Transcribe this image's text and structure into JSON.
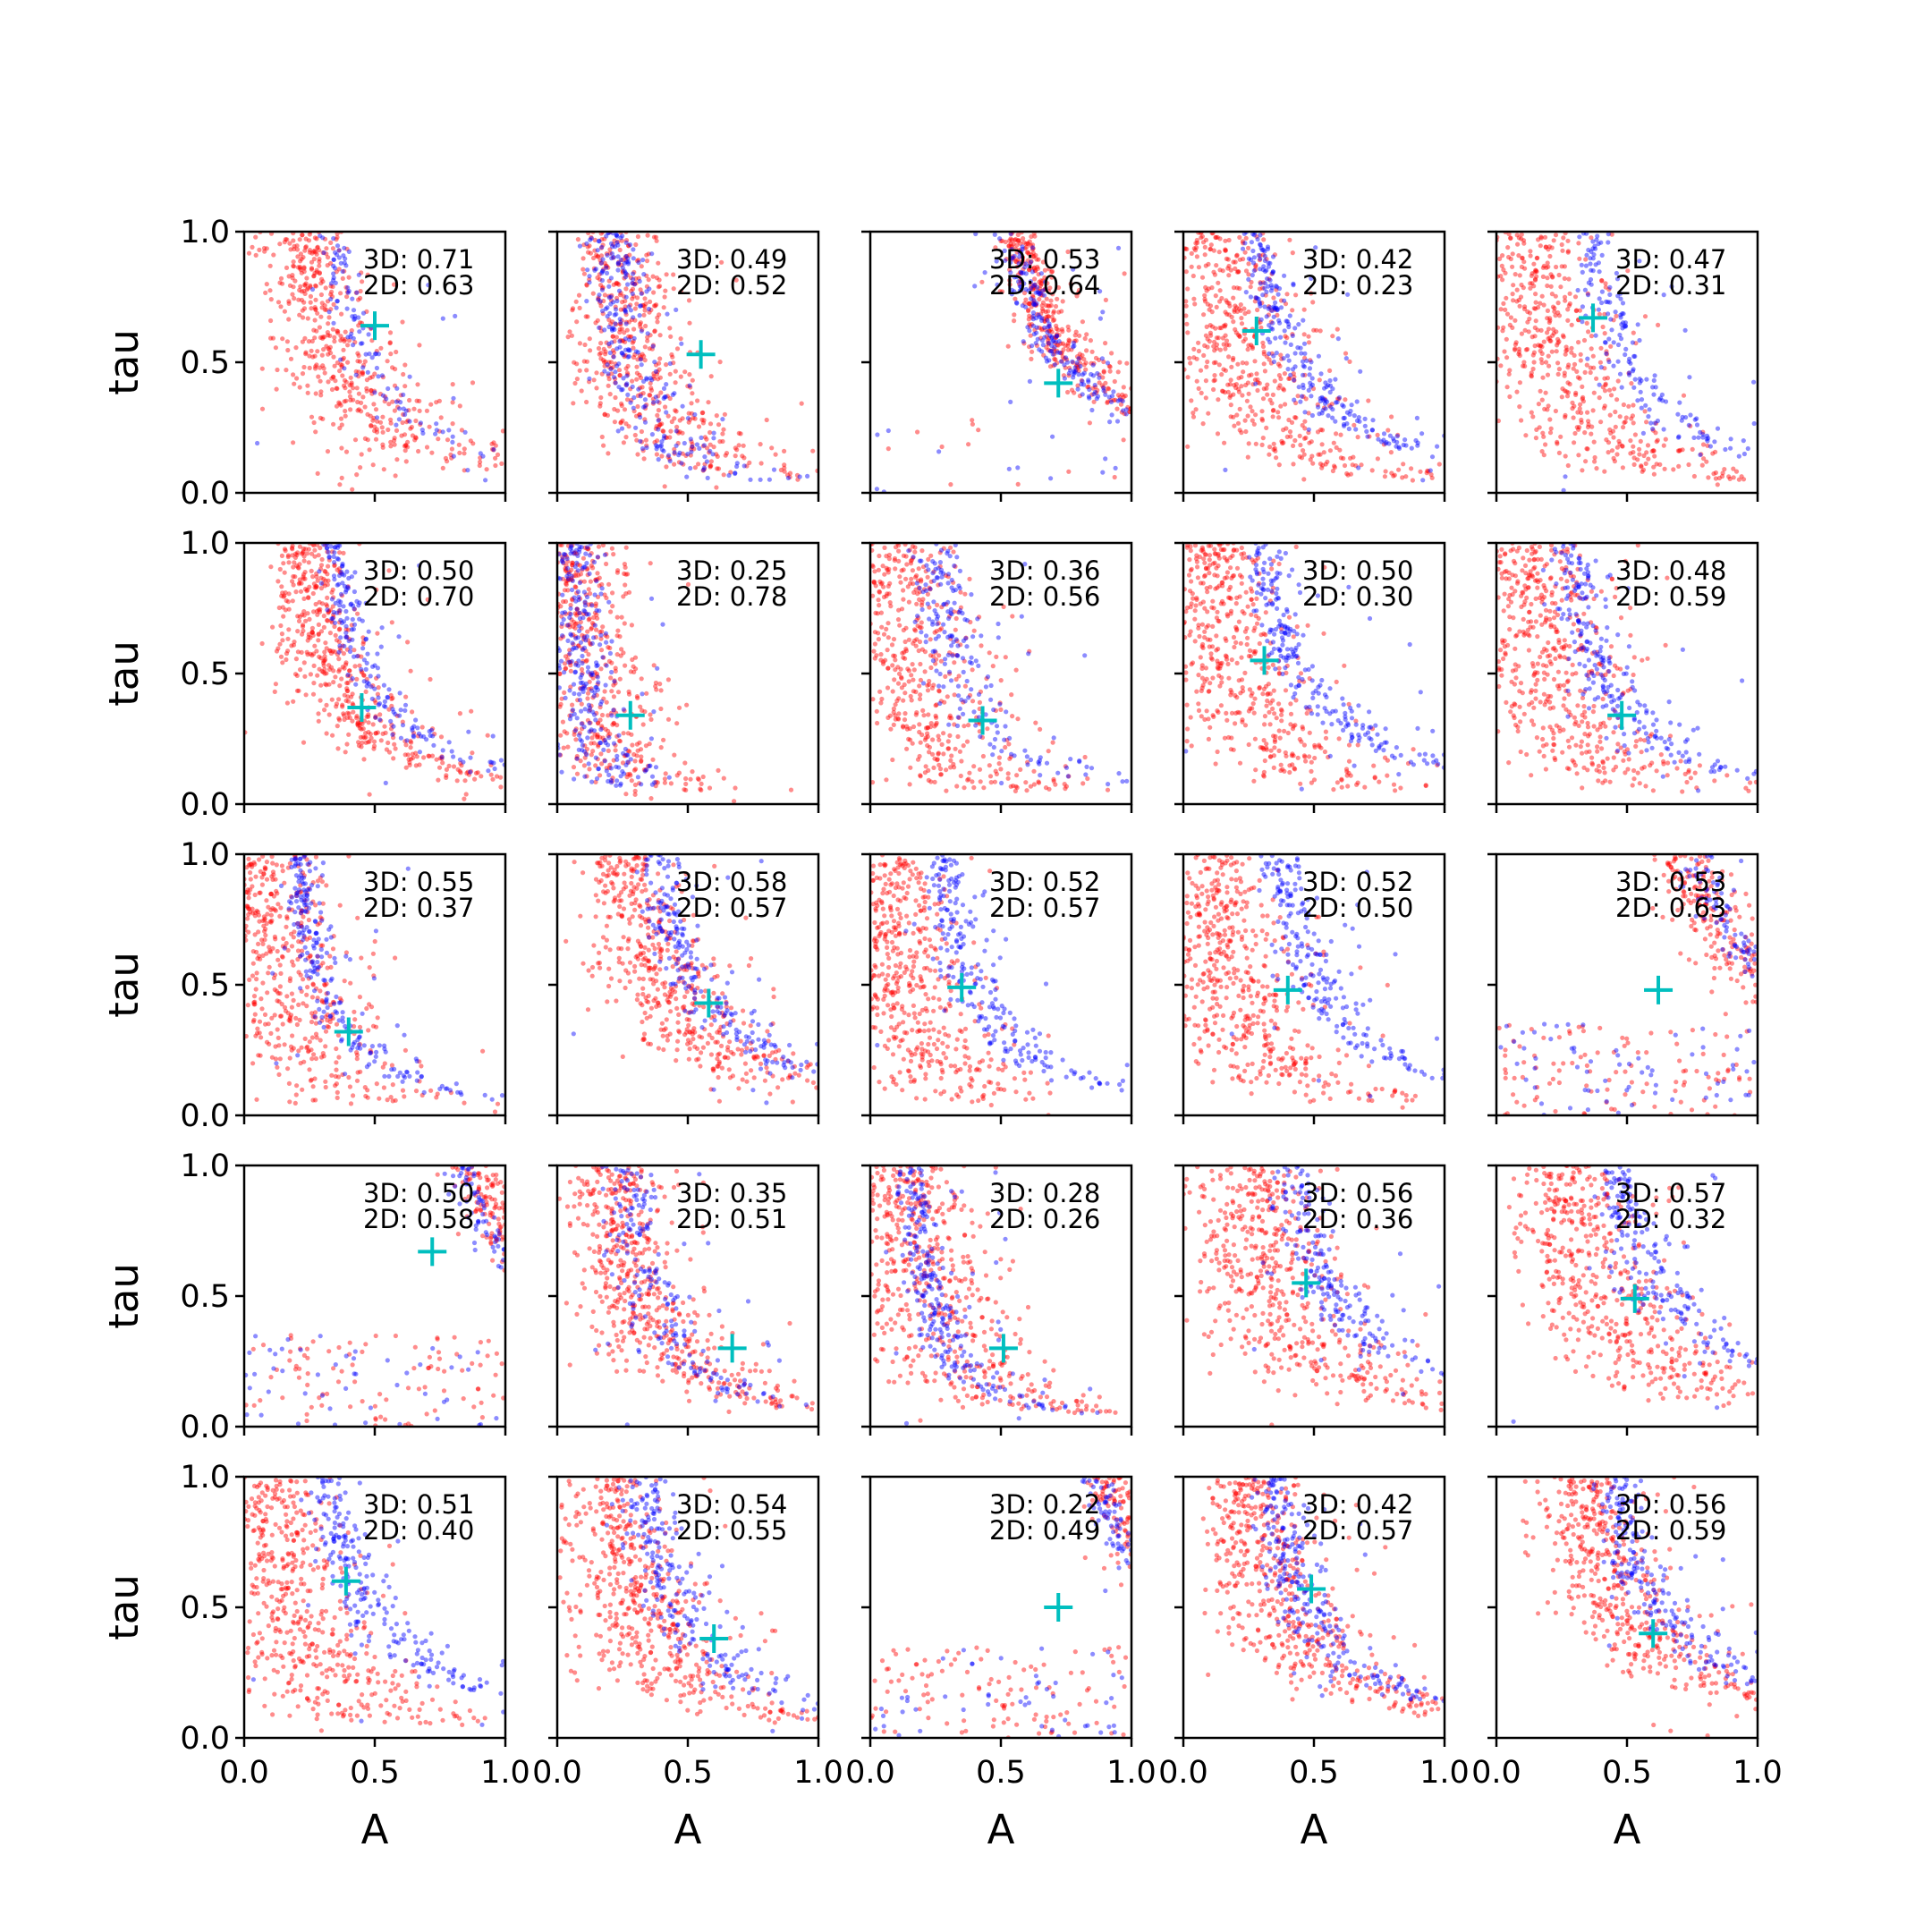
{
  "chart_data": {
    "type": "scatter",
    "grid": false,
    "layout": {
      "rows": 5,
      "cols": 5
    },
    "xlabel": "A",
    "ylabel": "tau",
    "xlim": [
      0,
      1
    ],
    "ylim": [
      0,
      1
    ],
    "xticks": [
      "0.0",
      "0.5",
      "1.0"
    ],
    "yticks": [
      "0.0",
      "0.5",
      "1.0"
    ],
    "marker_color": "#00bfbf",
    "series": [
      {
        "color": "#ff0000",
        "opacity": 0.45
      },
      {
        "color": "#0000ff",
        "opacity": 0.45
      }
    ],
    "panels": [
      {
        "label_3d": "3D: 0.71",
        "label_2d": "2D: 0.63",
        "marker": [
          0.5,
          0.64
        ],
        "red": {
          "a": [
            0.1,
            0.14,
            0.1,
            0.4,
            0.7
          ],
          "b": 0.02,
          "spread": 0.08,
          "dots": 550
        },
        "blue": {
          "a": [
            0.2,
            0.15,
            0.18,
            0.45,
            0.9
          ],
          "b": 0.04,
          "spread": 0.03,
          "dots": 130
        }
      },
      {
        "label_3d": "3D: 0.49",
        "label_2d": "2D: 0.52",
        "marker": [
          0.55,
          0.53
        ],
        "red": {
          "a": [
            0.12,
            0.09,
            0.12,
            0.32,
            0.95
          ],
          "b": 0.01,
          "spread": 0.08,
          "dots": 550
        },
        "blue": {
          "a": [
            0.15,
            0.07,
            0.14,
            0.25,
            0.98
          ],
          "b": 0.01,
          "spread": 0.05,
          "dots": 270
        }
      },
      {
        "label_3d": "3D: 0.53",
        "label_2d": "2D: 0.64",
        "marker": [
          0.72,
          0.42
        ],
        "red": {
          "a": [
            0.3,
            0.27,
            0.4,
            0.55,
            0.97
          ],
          "b": 0.06,
          "spread": 0.04,
          "dots": 520
        },
        "blue": {
          "a": [
            0.3,
            0.25,
            0.4,
            0.55,
            0.95
          ],
          "b": 0.05,
          "spread": 0.03,
          "dots": 260
        }
      },
      {
        "label_3d": "3D: 0.42",
        "label_2d": "2D: 0.23",
        "marker": [
          0.28,
          0.62
        ],
        "red": {
          "a": [
            0.05,
            0.09,
            0.02,
            0.55,
            0.95
          ],
          "b": 0.0,
          "spread": 0.1,
          "dots": 550
        },
        "blue": {
          "a": [
            0.12,
            0.17,
            0.2,
            0.45,
            0.98
          ],
          "b": 0.02,
          "spread": 0.03,
          "dots": 280
        }
      },
      {
        "label_3d": "3D: 0.47",
        "label_2d": "2D: 0.31",
        "marker": [
          0.37,
          0.67
        ],
        "red": {
          "a": [
            0.05,
            0.09,
            0.02,
            0.5,
            0.95
          ],
          "b": 0.0,
          "spread": 0.1,
          "dots": 550
        },
        "blue": {
          "a": [
            0.2,
            0.16,
            0.3,
            0.55,
            0.98
          ],
          "b": 0.02,
          "spread": 0.04,
          "dots": 200
        }
      },
      {
        "label_3d": "3D: 0.50",
        "label_2d": "2D: 0.70",
        "marker": [
          0.45,
          0.37
        ],
        "red": {
          "a": [
            0.1,
            0.13,
            0.18,
            0.45,
            0.8
          ],
          "b": 0.01,
          "spread": 0.06,
          "dots": 550
        },
        "blue": {
          "a": [
            0.2,
            0.15,
            0.25,
            0.55,
            0.98
          ],
          "b": 0.02,
          "spread": 0.03,
          "dots": 200
        }
      },
      {
        "label_3d": "3D: 0.25",
        "label_2d": "2D: 0.78",
        "marker": [
          0.28,
          0.34
        ],
        "red": {
          "a": [
            0.03,
            0.04,
            0.1,
            0.25,
            0.9
          ],
          "b": 0.0,
          "spread": 0.08,
          "dots": 550
        },
        "blue": {
          "a": [
            0.04,
            0.03,
            0.1,
            0.2,
            0.92
          ],
          "b": 0.0,
          "spread": 0.05,
          "dots": 300
        }
      },
      {
        "label_3d": "3D: 0.36",
        "label_2d": "2D: 0.56",
        "marker": [
          0.43,
          0.32
        ],
        "red": {
          "a": [
            0.05,
            0.06,
            0.2,
            0.45,
            0.9
          ],
          "b": 0.0,
          "spread": 0.1,
          "dots": 550
        },
        "blue": {
          "a": [
            0.15,
            0.11,
            0.22,
            0.4,
            0.9
          ],
          "b": 0.0,
          "spread": 0.04,
          "dots": 200
        }
      },
      {
        "label_3d": "3D: 0.50",
        "label_2d": "2D: 0.30",
        "marker": [
          0.31,
          0.55
        ],
        "red": {
          "a": [
            0.03,
            0.08,
            0.02,
            0.5,
            0.95
          ],
          "b": 0.0,
          "spread": 0.1,
          "dots": 550
        },
        "blue": {
          "a": [
            0.14,
            0.17,
            0.2,
            0.45,
            0.98
          ],
          "b": 0.02,
          "spread": 0.03,
          "dots": 250
        }
      },
      {
        "label_3d": "3D: 0.48",
        "label_2d": "2D: 0.59",
        "marker": [
          0.48,
          0.34
        ],
        "red": {
          "a": [
            0.05,
            0.08,
            0.05,
            0.5,
            0.98
          ],
          "b": 0.0,
          "spread": 0.1,
          "dots": 550
        },
        "blue": {
          "a": [
            0.16,
            0.13,
            0.3,
            0.55,
            0.95
          ],
          "b": 0.02,
          "spread": 0.04,
          "dots": 250
        }
      },
      {
        "label_3d": "3D: 0.55",
        "label_2d": "2D: 0.37",
        "marker": [
          0.4,
          0.32
        ],
        "red": {
          "a": [
            0.03,
            0.06,
            0.02,
            0.45,
            0.95
          ],
          "b": 0.0,
          "spread": 0.1,
          "dots": 550
        },
        "blue": {
          "a": [
            0.12,
            0.1,
            0.3,
            0.55,
            0.98
          ],
          "b": 0.01,
          "spread": 0.03,
          "dots": 230
        }
      },
      {
        "label_3d": "3D: 0.58",
        "label_2d": "2D: 0.57",
        "marker": [
          0.58,
          0.43
        ],
        "red": {
          "a": [
            0.12,
            0.15,
            0.1,
            0.45,
            0.95
          ],
          "b": 0.0,
          "spread": 0.08,
          "dots": 550
        },
        "blue": {
          "a": [
            0.2,
            0.18,
            0.4,
            0.6,
            0.97
          ],
          "b": 0.02,
          "spread": 0.04,
          "dots": 250
        }
      },
      {
        "label_3d": "3D: 0.52",
        "label_2d": "2D: 0.57",
        "marker": [
          0.35,
          0.49
        ],
        "red": {
          "a": [
            0.03,
            0.05,
            0.02,
            0.45,
            0.95
          ],
          "b": 0.0,
          "spread": 0.09,
          "dots": 550
        },
        "blue": {
          "a": [
            0.15,
            0.13,
            0.3,
            0.55,
            0.98
          ],
          "b": 0.02,
          "spread": 0.04,
          "dots": 250
        }
      },
      {
        "label_3d": "3D: 0.52",
        "label_2d": "2D: 0.50",
        "marker": [
          0.4,
          0.48
        ],
        "red": {
          "a": [
            0.05,
            0.07,
            0.05,
            0.5,
            0.95
          ],
          "b": 0.0,
          "spread": 0.09,
          "dots": 550
        },
        "blue": {
          "a": [
            0.2,
            0.17,
            0.35,
            0.6,
            0.97
          ],
          "b": 0.02,
          "spread": 0.04,
          "dots": 260
        }
      },
      {
        "label_3d": "3D: 0.53",
        "label_2d": "2D: 0.63",
        "marker": [
          0.62,
          0.48
        ],
        "red": {
          "a": [
            0.4,
            0.34,
            0.3,
            0.6,
            0.98
          ],
          "b": 0.2,
          "spread": 0.06,
          "dots": 520
        },
        "blue": {
          "a": [
            0.4,
            0.37,
            0.4,
            0.6,
            0.98
          ],
          "b": 0.25,
          "spread": 0.04,
          "dots": 260
        }
      },
      {
        "label_3d": "3D: 0.50",
        "label_2d": "2D: 0.58",
        "marker": [
          0.72,
          0.67
        ],
        "red": {
          "a": [
            0.48,
            0.42,
            0.28,
            0.6,
            0.98
          ],
          "b": 0.2,
          "spread": 0.05,
          "dots": 500
        },
        "blue": {
          "a": [
            0.45,
            0.4,
            0.5,
            0.7,
            0.97
          ],
          "b": 0.25,
          "spread": 0.03,
          "dots": 220
        }
      },
      {
        "label_3d": "3D: 0.35",
        "label_2d": "2D: 0.51",
        "marker": [
          0.67,
          0.3
        ],
        "red": {
          "a": [
            0.1,
            0.11,
            0.1,
            0.4,
            0.95
          ],
          "b": 0.0,
          "spread": 0.08,
          "dots": 550
        },
        "blue": {
          "a": [
            0.18,
            0.1,
            0.4,
            0.55,
            0.85
          ],
          "b": 0.01,
          "spread": 0.04,
          "dots": 200
        }
      },
      {
        "label_3d": "3D: 0.28",
        "label_2d": "2D: 0.26",
        "marker": [
          0.51,
          0.3
        ],
        "red": {
          "a": [
            0.05,
            0.08,
            0.1,
            0.4,
            0.95
          ],
          "b": 0.0,
          "spread": 0.1,
          "dots": 550
        },
        "blue": {
          "a": [
            0.1,
            0.07,
            0.4,
            0.5,
            0.95
          ],
          "b": 0.04,
          "spread": 0.03,
          "dots": 260
        }
      },
      {
        "label_3d": "3D: 0.56",
        "label_2d": "2D: 0.36",
        "marker": [
          0.47,
          0.55
        ],
        "red": {
          "a": [
            0.1,
            0.13,
            0.08,
            0.5,
            0.98
          ],
          "b": 0.0,
          "spread": 0.1,
          "dots": 550
        },
        "blue": {
          "a": [
            0.22,
            0.2,
            0.35,
            0.55,
            0.98
          ],
          "b": 0.02,
          "spread": 0.04,
          "dots": 250
        }
      },
      {
        "label_3d": "3D: 0.57",
        "label_2d": "2D: 0.32",
        "marker": [
          0.53,
          0.49
        ],
        "red": {
          "a": [
            0.15,
            0.13,
            0.1,
            0.5,
            0.98
          ],
          "b": 0.0,
          "spread": 0.1,
          "dots": 550
        },
        "blue": {
          "a": [
            0.25,
            0.22,
            0.4,
            0.6,
            0.98
          ],
          "b": 0.02,
          "spread": 0.04,
          "dots": 240
        }
      },
      {
        "label_3d": "3D: 0.51",
        "label_2d": "2D: 0.40",
        "marker": [
          0.39,
          0.6
        ],
        "red": {
          "a": [
            0.05,
            0.07,
            0.02,
            0.5,
            0.95
          ],
          "b": 0.0,
          "spread": 0.1,
          "dots": 550
        },
        "blue": {
          "a": [
            0.15,
            0.18,
            0.3,
            0.55,
            0.98
          ],
          "b": 0.02,
          "spread": 0.04,
          "dots": 250
        }
      },
      {
        "label_3d": "3D: 0.54",
        "label_2d": "2D: 0.55",
        "marker": [
          0.6,
          0.38
        ],
        "red": {
          "a": [
            0.1,
            0.11,
            0.1,
            0.45,
            0.95
          ],
          "b": 0.0,
          "spread": 0.09,
          "dots": 550
        },
        "blue": {
          "a": [
            0.2,
            0.14,
            0.4,
            0.6,
            0.9
          ],
          "b": 0.02,
          "spread": 0.04,
          "dots": 250
        }
      },
      {
        "label_3d": "3D: 0.22",
        "label_2d": "2D: 0.49",
        "marker": [
          0.72,
          0.5
        ],
        "red": {
          "a": [
            0.5,
            0.42,
            0.3,
            0.75,
            0.98
          ],
          "b": 0.2,
          "spread": 0.05,
          "dots": 500
        },
        "blue": {
          "a": [
            0.5,
            0.38,
            0.4,
            0.7,
            0.97
          ],
          "b": 0.2,
          "spread": 0.03,
          "dots": 240
        }
      },
      {
        "label_3d": "3D: 0.42",
        "label_2d": "2D: 0.57",
        "marker": [
          0.49,
          0.57
        ],
        "red": {
          "a": [
            0.1,
            0.14,
            0.1,
            0.5,
            0.98
          ],
          "b": 0.0,
          "spread": 0.09,
          "dots": 550
        },
        "blue": {
          "a": [
            0.2,
            0.15,
            0.35,
            0.55,
            0.95
          ],
          "b": 0.01,
          "spread": 0.04,
          "dots": 280
        }
      },
      {
        "label_3d": "3D: 0.56",
        "label_2d": "2D: 0.59",
        "marker": [
          0.6,
          0.4
        ],
        "red": {
          "a": [
            0.15,
            0.18,
            0.15,
            0.55,
            0.98
          ],
          "b": 0.0,
          "spread": 0.08,
          "dots": 550
        },
        "blue": {
          "a": [
            0.25,
            0.2,
            0.4,
            0.6,
            0.95
          ],
          "b": 0.02,
          "spread": 0.04,
          "dots": 260
        }
      }
    ]
  }
}
